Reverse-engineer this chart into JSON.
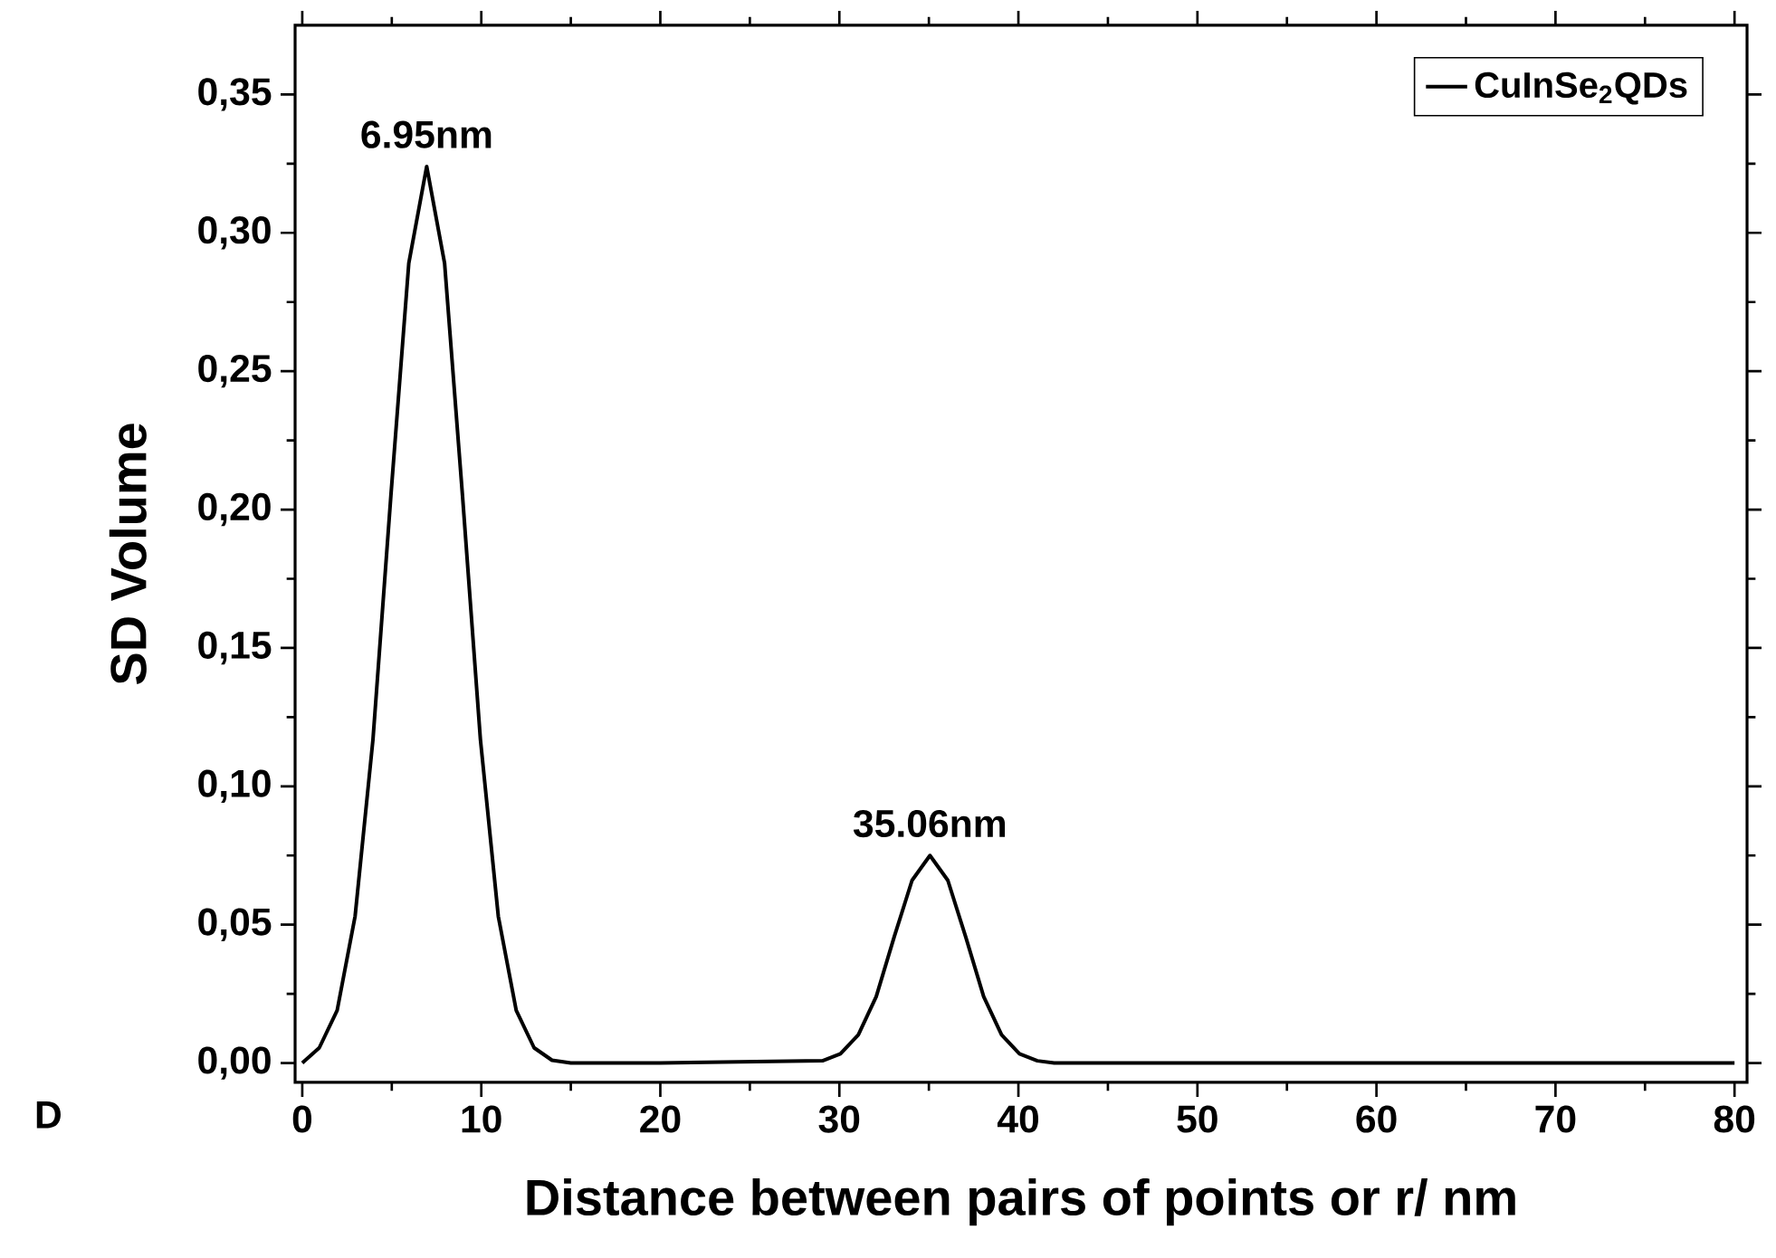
{
  "chart_data": {
    "type": "line",
    "xlabel": "Distance between pairs of points or r/ nm",
    "ylabel": "SD Volume",
    "x": [
      0,
      0.95,
      1.95,
      2.95,
      3.95,
      4.95,
      5.95,
      6.95,
      7.95,
      8.95,
      9.95,
      10.95,
      11.95,
      12.95,
      13.95,
      15,
      20,
      29.06,
      30.06,
      31.06,
      32.06,
      33.06,
      34.06,
      35.06,
      36.06,
      37.06,
      38.06,
      39.06,
      40.06,
      41.06,
      42,
      80
    ],
    "series": [
      {
        "name": "CuInSe$_{2}$QDs",
        "color": "#000000",
        "values": [
          0,
          0.0055,
          0.019,
          0.053,
          0.117,
          0.205,
          0.289,
          0.324,
          0.289,
          0.205,
          0.117,
          0.053,
          0.019,
          0.0055,
          0.001,
          0,
          0,
          0.0008,
          0.0033,
          0.0102,
          0.024,
          0.0455,
          0.066,
          0.075,
          0.066,
          0.0455,
          0.024,
          0.0102,
          0.0033,
          0.0008,
          0,
          0
        ]
      }
    ],
    "xlim": [
      -0.4,
      80.7
    ],
    "ylim": [
      -0.007,
      0.375
    ],
    "xticks": [
      0,
      10,
      20,
      30,
      40,
      50,
      60,
      70,
      80
    ],
    "yticks": [
      {
        "value": 0,
        "label": "0,00"
      },
      {
        "value": 0.05,
        "label": "0,05"
      },
      {
        "value": 0.1,
        "label": "0,10"
      },
      {
        "value": 0.15,
        "label": "0,15"
      },
      {
        "value": 0.2,
        "label": "0,20"
      },
      {
        "value": 0.25,
        "label": "0,25"
      },
      {
        "value": 0.3,
        "label": "0,30"
      },
      {
        "value": 0.35,
        "label": "0,35"
      }
    ],
    "annotations": [
      {
        "text": "6.95nm",
        "x": 6.95,
        "y": 0.324
      },
      {
        "text": "35.06nm",
        "x": 35.06,
        "y": 0.075
      },
      "D"
    ],
    "legend": "top right",
    "marker": "none",
    "line_style": "solid"
  }
}
